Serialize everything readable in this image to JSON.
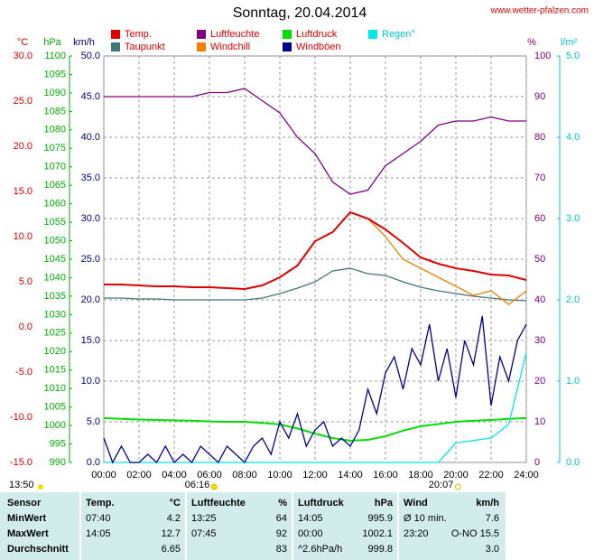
{
  "chart_data": {
    "type": "line",
    "title": "Sonntag, 20.04.2014",
    "source": "www.wetter-pfalzen.com",
    "x": [
      0,
      1,
      2,
      3,
      4,
      5,
      6,
      7,
      8,
      9,
      10,
      11,
      12,
      13,
      14,
      15,
      16,
      17,
      18,
      19,
      20,
      21,
      22,
      23,
      24
    ],
    "xlim": [
      0,
      24
    ],
    "xticks": [
      {
        "value": 0,
        "label": "00:00"
      },
      {
        "value": 2,
        "label": "02:00"
      },
      {
        "value": 4,
        "label": "04:00"
      },
      {
        "value": 6,
        "label": "06:00"
      },
      {
        "value": 8,
        "label": "08:00"
      },
      {
        "value": 10,
        "label": "10:00"
      },
      {
        "value": 12,
        "label": "12:00"
      },
      {
        "value": 14,
        "label": "14:00"
      },
      {
        "value": 16,
        "label": "16:00"
      },
      {
        "value": 18,
        "label": "18:00"
      },
      {
        "value": 20,
        "label": "20:00"
      },
      {
        "value": 22,
        "label": "22:00"
      },
      {
        "value": 24,
        "label": "24:00"
      }
    ],
    "grid": true,
    "axes": [
      {
        "label": "°C",
        "color": "#e00000",
        "lim": [
          -15,
          30
        ],
        "ticks": [
          {
            "value": -15,
            "label": "-15.0"
          },
          {
            "value": -10,
            "label": "-10.0"
          },
          {
            "value": -5,
            "label": "-5.0"
          },
          {
            "value": 0,
            "label": "0.0"
          },
          {
            "value": 5,
            "label": "5.0"
          },
          {
            "value": 10,
            "label": "10.0"
          },
          {
            "value": 15,
            "label": "15.0"
          },
          {
            "value": 20,
            "label": "20.0"
          },
          {
            "value": 25,
            "label": "25.0"
          },
          {
            "value": 30,
            "label": "30.0"
          }
        ]
      },
      {
        "label": "hPa",
        "color": "#00b000",
        "lim": [
          990,
          1100
        ],
        "ticks": [
          990,
          995,
          1000,
          1005,
          1010,
          1015,
          1020,
          1025,
          1030,
          1035,
          1040,
          1045,
          1050,
          1055,
          1060,
          1065,
          1070,
          1075,
          1080,
          1085,
          1090,
          1095,
          1100
        ]
      },
      {
        "label": "km/h",
        "color": "#000080",
        "lim": [
          0,
          50
        ],
        "ticks": [
          {
            "value": 0,
            "label": "0.0"
          },
          {
            "value": 5,
            "label": "5.0"
          },
          {
            "value": 10,
            "label": "10.0"
          },
          {
            "value": 15,
            "label": "15.0"
          },
          {
            "value": 20,
            "label": "20.0"
          },
          {
            "value": 25,
            "label": "25.0"
          },
          {
            "value": 30,
            "label": "30.0"
          },
          {
            "value": 35,
            "label": "35.0"
          },
          {
            "value": 40,
            "label": "40.0"
          },
          {
            "value": 45,
            "label": "45.0"
          },
          {
            "value": 50,
            "label": "50.0"
          }
        ]
      },
      {
        "label": "%",
        "color": "#800080",
        "lim": [
          0,
          100
        ],
        "ticks": [
          0,
          10,
          20,
          30,
          40,
          50,
          60,
          70,
          80,
          90,
          100
        ]
      },
      {
        "label": "l/m²",
        "color": "#00c8c8",
        "lim": [
          0,
          5
        ],
        "ticks": [
          {
            "value": 0,
            "label": "0.0"
          },
          {
            "value": 1,
            "label": "1.0"
          },
          {
            "value": 2,
            "label": "2.0"
          },
          {
            "value": 3,
            "label": "3.0"
          },
          {
            "value": 4,
            "label": "4.0"
          },
          {
            "value": 5,
            "label": "5.0"
          }
        ]
      }
    ],
    "series": [
      {
        "name": "Temp.",
        "color": "#e00000",
        "axis": 0,
        "values": [
          4.7,
          4.7,
          4.6,
          4.5,
          4.5,
          4.4,
          4.4,
          4.3,
          4.2,
          4.6,
          5.5,
          6.8,
          9.5,
          10.5,
          12.7,
          12.0,
          10.8,
          9.3,
          7.7,
          7.0,
          6.5,
          6.2,
          5.8,
          5.7,
          5.2
        ]
      },
      {
        "name": "Luftfeuchte",
        "color": "#800080",
        "axis": 3,
        "values": [
          90,
          90,
          90,
          90,
          90,
          90,
          91,
          91,
          92,
          89,
          86,
          80,
          76,
          69,
          66,
          67,
          73,
          76,
          79,
          83,
          84,
          84,
          85,
          84,
          84
        ]
      },
      {
        "name": "Luftdruck",
        "color": "#00e000",
        "axis": 1,
        "values": [
          1002.0,
          1001.8,
          1001.6,
          1001.5,
          1001.4,
          1001.3,
          1001.1,
          1001.0,
          1001.0,
          1000.7,
          1000.3,
          999.2,
          997.8,
          996.6,
          995.9,
          996.1,
          997.1,
          998.6,
          999.8,
          1000.4,
          1001.0,
          1001.3,
          1001.5,
          1001.8,
          1002.0
        ]
      },
      {
        "name": "Regen°",
        "color": "#00e8e8",
        "axis": 4,
        "values": [
          0,
          0,
          0,
          0,
          0,
          0,
          0,
          0,
          0,
          0,
          0,
          0,
          0,
          0,
          0,
          0,
          0,
          0,
          0,
          0,
          0.24,
          0.27,
          0.3,
          0.47,
          1.35
        ]
      },
      {
        "name": "Taupunkt",
        "color": "#407878",
        "axis": 0,
        "values": [
          3.2,
          3.2,
          3.1,
          3.1,
          3.0,
          3.0,
          3.0,
          3.0,
          3.0,
          3.2,
          3.7,
          4.3,
          5.0,
          6.2,
          6.5,
          5.9,
          5.7,
          5.0,
          4.4,
          4.0,
          3.7,
          3.4,
          3.2,
          3.0,
          2.9
        ]
      },
      {
        "name": "Windchill",
        "color": "#f08000",
        "axis": 0,
        "values": [
          4.7,
          4.7,
          4.6,
          4.5,
          4.5,
          4.4,
          4.4,
          4.3,
          4.2,
          4.6,
          5.5,
          6.8,
          9.5,
          10.5,
          12.7,
          12.0,
          10.0,
          7.5,
          6.5,
          5.5,
          4.5,
          3.5,
          4.0,
          2.5,
          4.0
        ]
      },
      {
        "name": "Windböen",
        "color": "#000090",
        "axis": 2,
        "x": [
          0,
          0.5,
          1,
          1.5,
          2,
          2.5,
          3,
          3.5,
          4,
          4.5,
          5,
          5.5,
          6,
          6.5,
          7,
          7.5,
          8,
          8.5,
          9,
          9.5,
          10,
          10.5,
          11,
          11.5,
          12,
          12.5,
          13,
          13.5,
          14,
          14.5,
          15,
          15.5,
          16,
          16.5,
          17,
          17.5,
          18,
          18.5,
          19,
          19.5,
          20,
          20.5,
          21,
          21.5,
          22,
          22.5,
          23,
          23.5,
          24
        ],
        "values": [
          3,
          0,
          2,
          0,
          0,
          1,
          0,
          2,
          0,
          1,
          0,
          2,
          1,
          0,
          2,
          1,
          0,
          2,
          3,
          1,
          5,
          3,
          6,
          2,
          4,
          5,
          2,
          3,
          2,
          4,
          9,
          6,
          11,
          13,
          9,
          14,
          12,
          17,
          10,
          14,
          8,
          15,
          12,
          18,
          7,
          13,
          10,
          15,
          17
        ]
      }
    ],
    "annotations": {
      "time": "13:50",
      "sunrise": {
        "x": 6.27,
        "label": "06:16"
      },
      "sunset": {
        "x": 20.12,
        "label": "20:07"
      }
    }
  },
  "table": {
    "header": [
      "Sensor",
      "Temp.",
      "°C",
      "Luftfeuchte",
      "%",
      "Luftdruck",
      "hPa",
      "Wind",
      "km/h"
    ],
    "rows": [
      [
        "MinWert",
        "07:40",
        "4.2",
        "13:25",
        "64",
        "14:05",
        "995.9",
        "Ø 10 min.",
        "7.6"
      ],
      [
        "MaxWert",
        "14:05",
        "12.7",
        "07:45",
        "92",
        "00:00",
        "1002.1",
        "23:20",
        "O-NO 15.5"
      ],
      [
        "Durchschnitt",
        null,
        "6.65",
        null,
        "83",
        "^2.6hPa/h",
        "999.8",
        null,
        "3.0"
      ]
    ]
  }
}
